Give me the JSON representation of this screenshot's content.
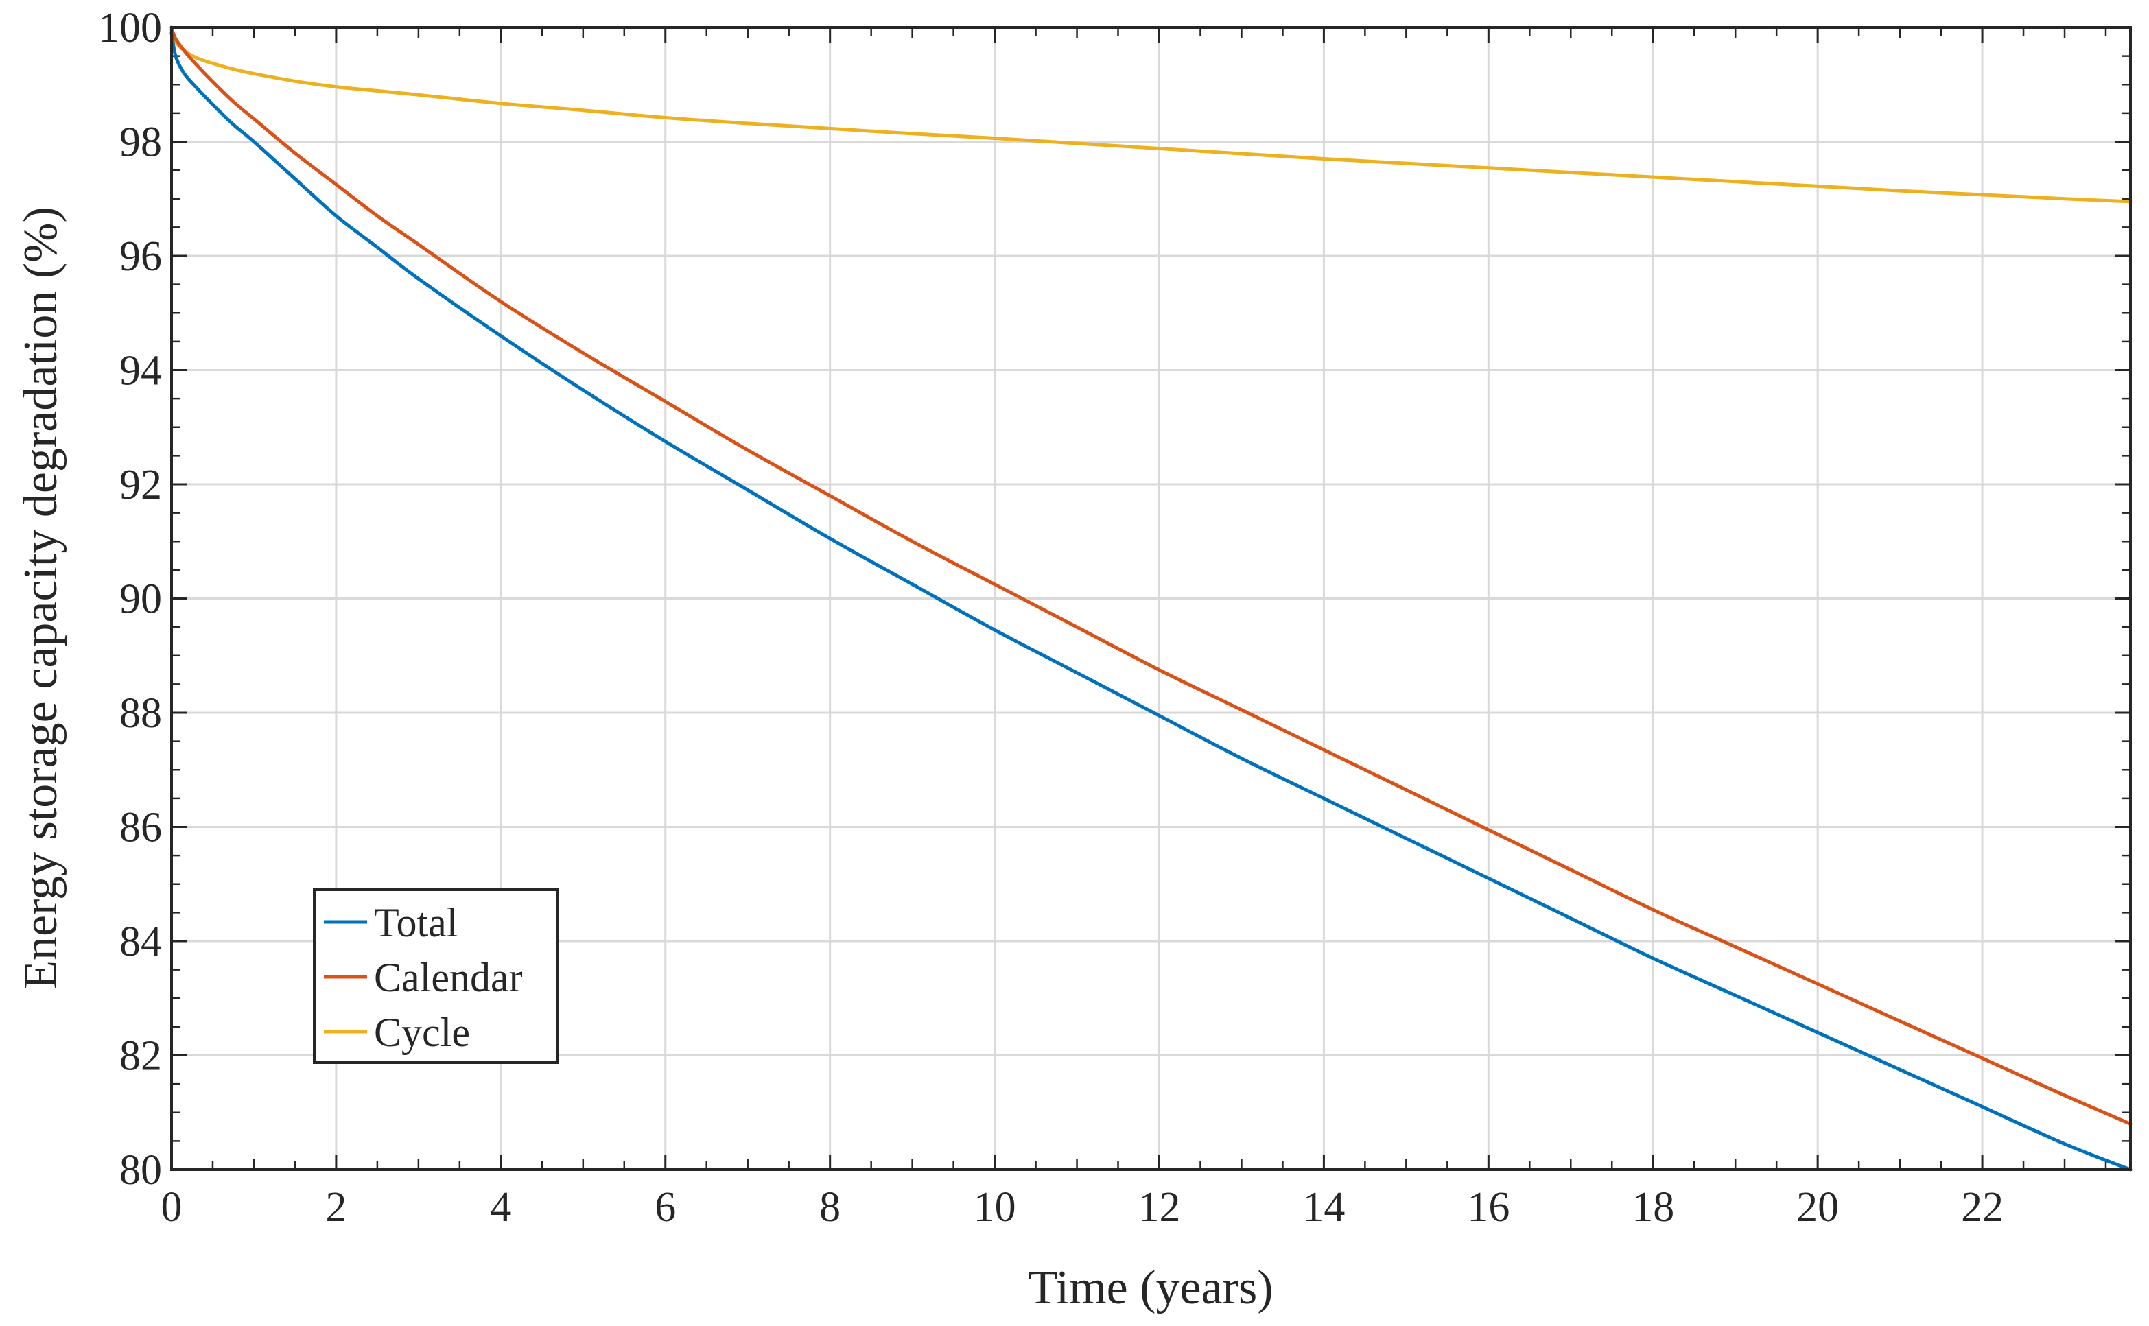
{
  "chart_data": {
    "type": "line",
    "title": "",
    "xlabel": "Time (years)",
    "ylabel": "Energy storage capacity degradation (%)",
    "xlim": [
      0,
      23.8
    ],
    "ylim": [
      80,
      100
    ],
    "xticks": [
      0,
      2,
      4,
      6,
      8,
      10,
      12,
      14,
      16,
      18,
      20,
      22
    ],
    "xtick_labels": [
      "0",
      "2",
      "4",
      "6",
      "8",
      "10",
      "12",
      "14",
      "16",
      "18",
      "20",
      "22"
    ],
    "yticks": [
      80,
      82,
      84,
      86,
      88,
      90,
      92,
      94,
      96,
      98,
      100
    ],
    "ytick_labels": [
      "80",
      "82",
      "84",
      "86",
      "88",
      "90",
      "92",
      "94",
      "96",
      "98",
      "100"
    ],
    "grid": true,
    "legend_position": "bottom-left",
    "x": [
      0,
      0.05,
      0.15,
      0.3,
      0.5,
      0.75,
      1,
      1.5,
      2,
      2.5,
      3,
      4,
      5,
      6,
      7,
      8,
      9,
      10,
      11,
      12,
      13,
      14,
      15,
      16,
      17,
      18,
      19,
      20,
      21,
      22,
      23,
      23.8
    ],
    "series": [
      {
        "name": "Total",
        "color": "#0072BD",
        "values": [
          99.9,
          99.5,
          99.2,
          98.95,
          98.65,
          98.3,
          98.0,
          97.35,
          96.7,
          96.15,
          95.6,
          94.6,
          93.65,
          92.75,
          91.9,
          91.05,
          90.25,
          89.45,
          88.7,
          87.95,
          87.2,
          86.5,
          85.8,
          85.1,
          84.4,
          83.7,
          83.05,
          82.4,
          81.75,
          81.1,
          80.45,
          80.0
        ]
      },
      {
        "name": "Calendar",
        "color": "#D95319",
        "values": [
          100,
          99.8,
          99.6,
          99.35,
          99.05,
          98.7,
          98.4,
          97.8,
          97.25,
          96.7,
          96.2,
          95.2,
          94.3,
          93.45,
          92.6,
          91.8,
          91.0,
          90.25,
          89.5,
          88.75,
          88.05,
          87.35,
          86.65,
          85.95,
          85.25,
          84.55,
          83.9,
          83.25,
          82.6,
          81.95,
          81.3,
          80.8
        ]
      },
      {
        "name": "Cycle",
        "color": "#EDB120",
        "values": [
          99.95,
          99.75,
          99.6,
          99.47,
          99.37,
          99.27,
          99.19,
          99.06,
          98.96,
          98.89,
          98.82,
          98.67,
          98.55,
          98.42,
          98.32,
          98.23,
          98.14,
          98.06,
          97.97,
          97.88,
          97.79,
          97.7,
          97.62,
          97.54,
          97.46,
          97.38,
          97.3,
          97.22,
          97.14,
          97.07,
          97.0,
          96.95
        ]
      }
    ]
  }
}
